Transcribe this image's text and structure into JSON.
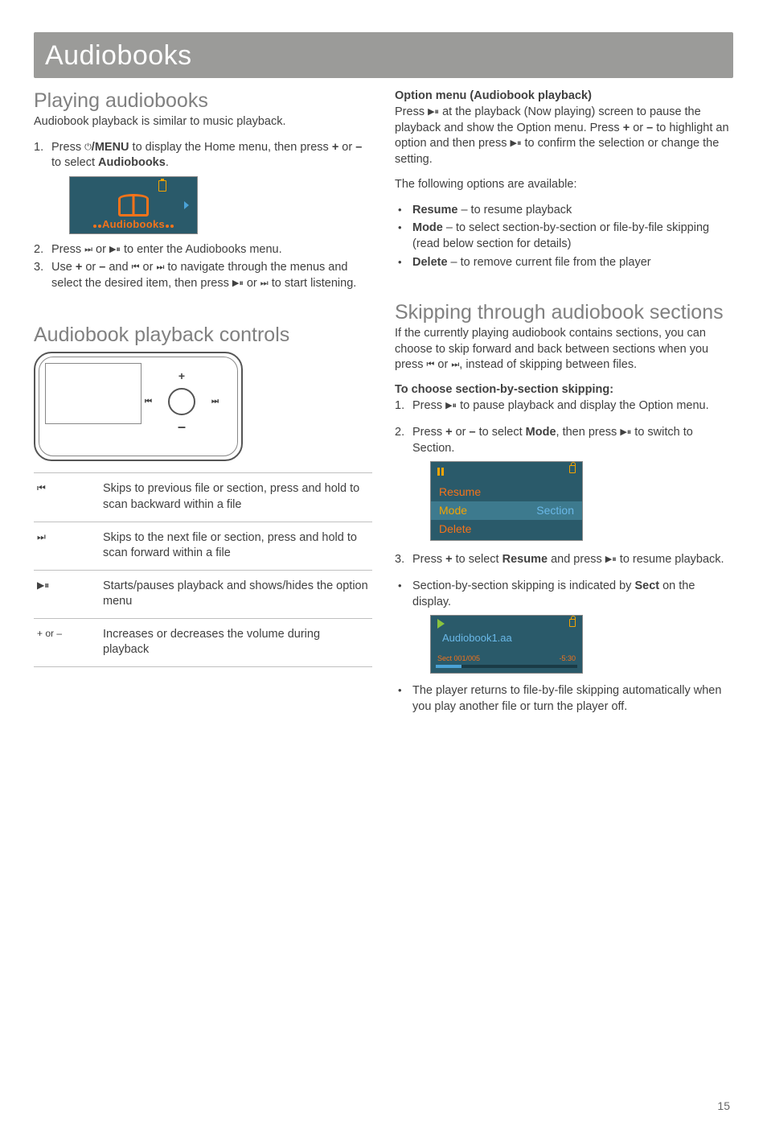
{
  "page_number": "15",
  "header": {
    "title": "Audiobooks"
  },
  "left": {
    "s1": {
      "heading": "Playing audiobooks",
      "intro": "Audiobook playback is similar to music playback.",
      "step1_a": "Press ",
      "step1_b": "/MENU",
      "step1_c": " to display the Home menu, then press ",
      "step1_d": "+",
      "step1_e": " or ",
      "step1_f": "–",
      "step1_g": " to select ",
      "step1_h": "Audiobooks",
      "step1_i": ".",
      "home_label": "Audiobooks",
      "step2_a": "Press ",
      "step2_b": " or ",
      "step2_c": " to enter the Audiobooks menu.",
      "step3_a": "Use ",
      "step3_b": "+",
      "step3_c": " or ",
      "step3_d": "–",
      "step3_e": " and ",
      "step3_f": " or ",
      "step3_g": " to navigate through the menus and select the desired item, then press ",
      "step3_h": " or ",
      "step3_i": " to start listening."
    },
    "s2": {
      "heading": "Audiobook playback controls"
    },
    "device": {
      "plus": "+",
      "minus": "–",
      "prev": "⏮",
      "next": "⏭"
    },
    "controls": {
      "rows": [
        {
          "key": "⏮",
          "desc": "Skips to previous file or section, press and hold to scan backward within a file"
        },
        {
          "key": "⏭",
          "desc": "Skips to the next file or section, press and hold to scan forward within a file"
        },
        {
          "key": "▶⏸",
          "desc": "Starts/pauses playback and shows/hides the option menu"
        },
        {
          "key": "+ or –",
          "desc": "Increases or decreases the volume during playback"
        }
      ]
    }
  },
  "right": {
    "optmenu": {
      "head": "Option menu (Audiobook playback)",
      "p1_a": "Press ",
      "p1_b": " at the playback (Now playing) screen to pause the playback and show the Option menu. Press ",
      "p1_c": "+",
      "p1_d": " or ",
      "p1_e": "–",
      "p1_f": " to highlight an option and then press ",
      "p1_g": " to confirm the selection or change the setting.",
      "p2": "The following options are available:",
      "b1_key": "Resume",
      "b1_txt": " – to resume playback",
      "b2_key": "Mode",
      "b2_txt": " – to select section-by-section or file-by-file skipping (read below section for details)",
      "b3_key": "Delete",
      "b3_txt": " – to remove current file from the player"
    },
    "skip": {
      "heading": "Skipping through audiobook sections",
      "intro_a": "If the currently playing audiobook contains sections, you can choose to skip forward and back between sections when you press ",
      "intro_b": " or ",
      "intro_c": ", instead of skipping between files.",
      "choose": "To choose section-by-section skipping:",
      "step1_a": "Press ",
      "step1_b": " to pause playback and display the Option menu.",
      "step2_a": "Press ",
      "step2_b": "+",
      "step2_c": " or ",
      "step2_d": "–",
      "step2_e": " to select ",
      "step2_f": "Mode",
      "step2_g": ", then press ",
      "step2_h": " to switch to Section.",
      "menu": {
        "resume": "Resume",
        "mode": "Mode",
        "mode_val": "Section",
        "delete": "Delete"
      },
      "step3_a": "Press ",
      "step3_b": "+",
      "step3_c": " to select ",
      "step3_d": "Resume",
      "step3_e": " and press ",
      "step3_f": " to resume playback.",
      "bullet_sect_a": "Section-by-section skipping is indicated by ",
      "bullet_sect_b": "Sect",
      "bullet_sect_c": " on the display.",
      "nowplay": {
        "title": "Audiobook1.aa",
        "sect": "Sect 001/005",
        "time": "-5:30"
      },
      "bullet_last": "The player returns to file-by-file skipping automatically when you play another file or turn the player off."
    }
  },
  "glyphs": {
    "power": "⏻",
    "next": "⏭",
    "prev": "⏮",
    "playpause": "▶⏸"
  },
  "colors": {
    "header_bg": "#9b9b99",
    "heading": "#808080",
    "text": "#404040",
    "screen_bg": "#2a5a6a",
    "orange": "#f5731a",
    "amber": "#f5a400",
    "blue": "#4aa2d6",
    "row_sel": "#3d7a8e",
    "border": "#c0c0c0"
  }
}
